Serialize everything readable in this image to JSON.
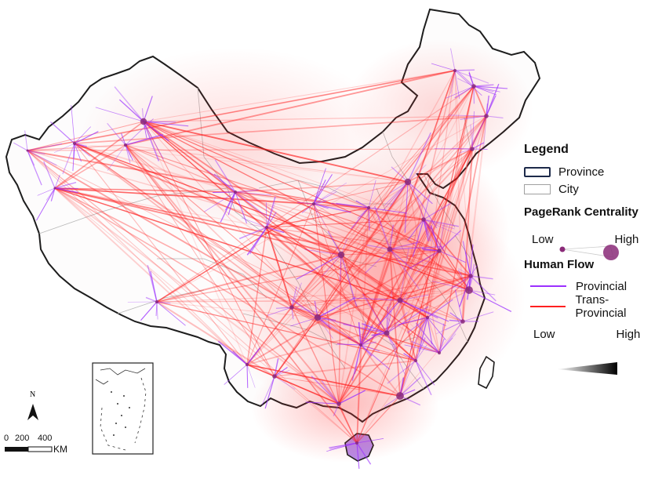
{
  "legend": {
    "title": "Legend",
    "province_label": "Province",
    "city_label": "City",
    "pagerank_title": "PageRank Centrality",
    "pagerank_low": "Low",
    "pagerank_high": "High",
    "flow_title": "Human Flow",
    "provincial_label": "Provincial",
    "trans_label": "Trans-Provincial",
    "intensity_low": "Low",
    "intensity_high": "High"
  },
  "north_arrow": {
    "label": "N"
  },
  "scale_bar": {
    "ticks": [
      "0",
      "200",
      "400"
    ],
    "unit": "KM"
  },
  "colors": {
    "provincial": "#9b30ff",
    "trans_provincial": "#ff2020",
    "province_border": "#1d2a4a",
    "city_border": "#a8a8a8",
    "node": "#8a2a78"
  }
}
